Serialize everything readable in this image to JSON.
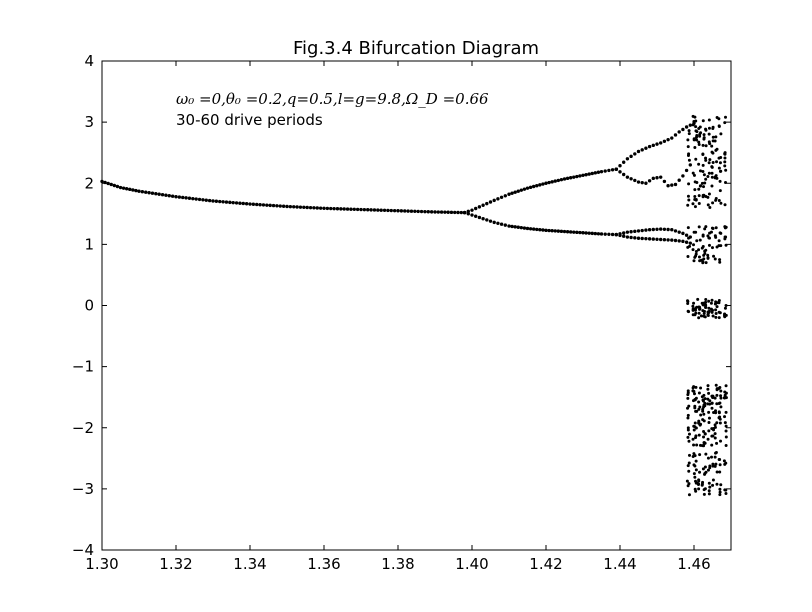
{
  "chart_data": {
    "type": "scatter",
    "title": "Fig.3.4 Bifurcation Diagram",
    "xlabel": "",
    "ylabel": "",
    "xlim": [
      1.3,
      1.47
    ],
    "ylim": [
      -4,
      4
    ],
    "xticks": [
      1.3,
      1.32,
      1.34,
      1.36,
      1.38,
      1.4,
      1.42,
      1.44,
      1.46
    ],
    "xtick_labels": [
      "1.30",
      "1.32",
      "1.34",
      "1.36",
      "1.38",
      "1.40",
      "1.42",
      "1.44",
      "1.46"
    ],
    "yticks": [
      -4,
      -3,
      -2,
      -1,
      0,
      1,
      2,
      3,
      4
    ],
    "ytick_labels": [
      "−4",
      "−3",
      "−2",
      "−1",
      "0",
      "1",
      "2",
      "3",
      "4"
    ],
    "grid": false,
    "marker_color": "#000000",
    "annotations": [
      "ω₀ =0,θ₀ =0.2,q=0.5,l=g=9.8,Ω_D =0.66",
      "30-60 drive periods"
    ],
    "branches": [
      {
        "name": "",
        "x": [
          1.3,
          1.305,
          1.31,
          1.32,
          1.33,
          1.34,
          1.35,
          1.36,
          1.37,
          1.38,
          1.39,
          1.398
        ],
        "y": [
          2.03,
          1.93,
          1.87,
          1.78,
          1.71,
          1.66,
          1.62,
          1.59,
          1.57,
          1.55,
          1.53,
          1.52
        ]
      },
      {
        "name": "",
        "x": [
          1.398,
          1.4,
          1.403,
          1.406,
          1.41,
          1.415,
          1.42,
          1.425,
          1.43,
          1.435,
          1.439
        ],
        "y": [
          1.52,
          1.56,
          1.64,
          1.72,
          1.82,
          1.92,
          2.0,
          2.07,
          2.13,
          2.19,
          2.23
        ]
      },
      {
        "name": "",
        "x": [
          1.398,
          1.4,
          1.403,
          1.406,
          1.41,
          1.415,
          1.42,
          1.425,
          1.43,
          1.435,
          1.439
        ],
        "y": [
          1.52,
          1.48,
          1.42,
          1.36,
          1.3,
          1.26,
          1.23,
          1.21,
          1.19,
          1.17,
          1.16
        ]
      },
      {
        "name": "",
        "x": [
          1.439,
          1.442,
          1.445,
          1.448,
          1.451,
          1.454,
          1.456,
          1.458,
          1.46
        ],
        "y": [
          2.23,
          2.4,
          2.52,
          2.6,
          2.66,
          2.74,
          2.84,
          2.92,
          2.98
        ]
      },
      {
        "name": "",
        "x": [
          1.439,
          1.442,
          1.445,
          1.447,
          1.449,
          1.451,
          1.453,
          1.455,
          1.457,
          1.459
        ],
        "y": [
          2.23,
          2.1,
          2.02,
          2.0,
          2.08,
          2.1,
          1.96,
          1.98,
          2.12,
          2.3
        ]
      },
      {
        "name": "",
        "x": [
          1.439,
          1.442,
          1.445,
          1.448,
          1.451,
          1.454,
          1.457,
          1.459
        ],
        "y": [
          1.16,
          1.2,
          1.22,
          1.24,
          1.25,
          1.24,
          1.18,
          1.12
        ]
      },
      {
        "name": "",
        "x": [
          1.439,
          1.442,
          1.445,
          1.448,
          1.451,
          1.454,
          1.457,
          1.459
        ],
        "y": [
          1.16,
          1.12,
          1.1,
          1.09,
          1.08,
          1.07,
          1.05,
          1.02
        ]
      }
    ],
    "chaotic_region": {
      "x": [
        1.4585,
        1.46,
        1.4605,
        1.4615,
        1.4625,
        1.463,
        1.464,
        1.465,
        1.466,
        1.467,
        1.4685
      ],
      "y_clusters": [
        [
          2.4,
          3.1
        ],
        [
          1.6,
          2.4
        ],
        [
          0.7,
          1.3
        ],
        [
          -0.2,
          0.1
        ],
        [
          -1.7,
          -1.3
        ],
        [
          -2.3,
          -1.7
        ],
        [
          -3.1,
          -2.4
        ]
      ],
      "isolated": [
        [
          1.461,
          0.1
        ],
        [
          1.462,
          -0.17
        ],
        [
          1.465,
          -0.08
        ],
        [
          1.462,
          0.74
        ]
      ]
    }
  }
}
